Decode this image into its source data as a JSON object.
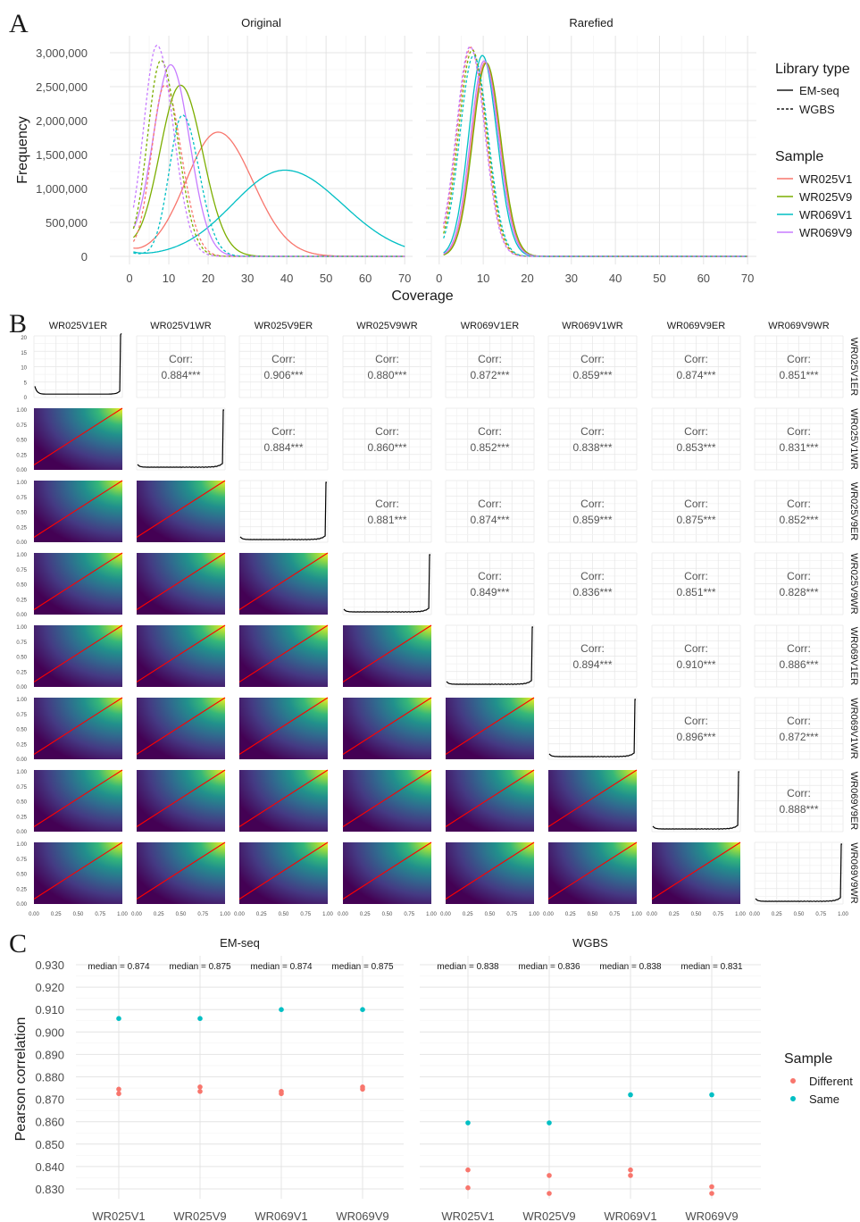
{
  "colors": {
    "WR025V1": "#F8766D",
    "WR025V9": "#7CAE00",
    "WR069V1": "#00BFC4",
    "WR069V9": "#C77CFF",
    "Different": "#F8766D",
    "Same": "#00BFC4",
    "fit_line": "#FF0000",
    "density_line": "#000000"
  },
  "panel_a": {
    "letter": "A",
    "facets": [
      "Original",
      "Rarefied"
    ],
    "xlabel": "Coverage",
    "ylabel": "Frequency",
    "x_ticks": [
      "0",
      "10",
      "20",
      "30",
      "40",
      "50",
      "60",
      "70"
    ],
    "y_ticks": [
      "0",
      "500,000",
      "1,000,000",
      "1,500,000",
      "2,000,000",
      "2,500,000",
      "3,000,000"
    ],
    "legend_library_title": "Library type",
    "legend_library": [
      {
        "label": "EM-seq",
        "dash": "solid"
      },
      {
        "label": "WGBS",
        "dash": "dashed"
      }
    ],
    "legend_sample_title": "Sample",
    "legend_sample": [
      "WR025V1",
      "WR025V9",
      "WR069V1",
      "WR069V9"
    ]
  },
  "panel_b": {
    "letter": "B",
    "samples": [
      "WR025V1ER",
      "WR025V1WR",
      "WR025V9ER",
      "WR025V9WR",
      "WR069V1ER",
      "WR069V1WR",
      "WR069V9ER",
      "WR069V9WR"
    ],
    "corr_label": "Corr:",
    "corr": [
      [
        null,
        "0.884***",
        "0.906***",
        "0.880***",
        "0.872***",
        "0.859***",
        "0.874***",
        "0.851***"
      ],
      [
        null,
        null,
        "0.884***",
        "0.860***",
        "0.852***",
        "0.838***",
        "0.853***",
        "0.831***"
      ],
      [
        null,
        null,
        null,
        "0.881***",
        "0.874***",
        "0.859***",
        "0.875***",
        "0.852***"
      ],
      [
        null,
        null,
        null,
        null,
        "0.849***",
        "0.836***",
        "0.851***",
        "0.828***"
      ],
      [
        null,
        null,
        null,
        null,
        null,
        "0.894***",
        "0.910***",
        "0.886***"
      ],
      [
        null,
        null,
        null,
        null,
        null,
        null,
        "0.896***",
        "0.872***"
      ],
      [
        null,
        null,
        null,
        null,
        null,
        null,
        null,
        "0.888***"
      ]
    ],
    "first_row_y_ticks": [
      "0",
      "5",
      "10",
      "15",
      "20"
    ],
    "y_ticks": [
      "0.00",
      "0.25",
      "0.50",
      "0.75",
      "1.00"
    ],
    "x_ticks": [
      "0.00",
      "0.25",
      "0.50",
      "0.75",
      "1.00"
    ]
  },
  "panel_c": {
    "letter": "C",
    "ylabel": "Pearson correlation",
    "y_ticks": [
      "0.830",
      "0.840",
      "0.850",
      "0.860",
      "0.870",
      "0.880",
      "0.890",
      "0.900",
      "0.910",
      "0.920",
      "0.930"
    ],
    "facets": [
      "EM-seq",
      "WGBS"
    ],
    "categories": [
      "WR025V1",
      "WR025V9",
      "WR069V1",
      "WR069V9"
    ],
    "medians": [
      [
        "median = 0.874",
        "median = 0.875",
        "median = 0.874",
        "median = 0.875"
      ],
      [
        "median = 0.838",
        "median = 0.836",
        "median = 0.838",
        "median = 0.831"
      ]
    ],
    "legend_title": "Sample",
    "legend_items": [
      "Different",
      "Same"
    ]
  },
  "chart_data": [
    {
      "type": "line",
      "panel": "A",
      "facets": [
        "Original",
        "Rarefied"
      ],
      "xlabel": "Coverage",
      "ylabel": "Frequency",
      "xlim": [
        0,
        70
      ],
      "ylim": [
        0,
        3000000
      ],
      "series": [
        {
          "name": "WR025V1",
          "library": "EM-seq",
          "facet": "Original",
          "peak_x": 22.5,
          "peak_y": 1830000
        },
        {
          "name": "WR025V9",
          "library": "EM-seq",
          "facet": "Original",
          "peak_x": 13,
          "peak_y": 2520000
        },
        {
          "name": "WR069V1",
          "library": "EM-seq",
          "facet": "Original",
          "peak_x": 39.5,
          "peak_y": 1270000
        },
        {
          "name": "WR069V9",
          "library": "EM-seq",
          "facet": "Original",
          "peak_x": 10.5,
          "peak_y": 2820000
        },
        {
          "name": "WR025V1",
          "library": "WGBS",
          "facet": "Original",
          "peak_x": 9,
          "peak_y": 2520000
        },
        {
          "name": "WR025V9",
          "library": "WGBS",
          "facet": "Original",
          "peak_x": 8,
          "peak_y": 2880000
        },
        {
          "name": "WR069V1",
          "library": "WGBS",
          "facet": "Original",
          "peak_x": 13.5,
          "peak_y": 2080000
        },
        {
          "name": "WR069V9",
          "library": "WGBS",
          "facet": "Original",
          "peak_x": 7,
          "peak_y": 3100000
        },
        {
          "name": "WR025V1",
          "library": "EM-seq",
          "facet": "Rarefied",
          "peak_x": 10.5,
          "peak_y": 2860000
        },
        {
          "name": "WR025V9",
          "library": "EM-seq",
          "facet": "Rarefied",
          "peak_x": 10.7,
          "peak_y": 2850000
        },
        {
          "name": "WR069V1",
          "library": "EM-seq",
          "facet": "Rarefied",
          "peak_x": 9.8,
          "peak_y": 2960000
        },
        {
          "name": "WR069V9",
          "library": "EM-seq",
          "facet": "Rarefied",
          "peak_x": 10.2,
          "peak_y": 2880000
        },
        {
          "name": "WR025V1",
          "library": "WGBS",
          "facet": "Rarefied",
          "peak_x": 7.2,
          "peak_y": 3080000
        },
        {
          "name": "WR025V9",
          "library": "WGBS",
          "facet": "Rarefied",
          "peak_x": 7.5,
          "peak_y": 3040000
        },
        {
          "name": "WR069V1",
          "library": "WGBS",
          "facet": "Rarefied",
          "peak_x": 7.8,
          "peak_y": 2960000
        },
        {
          "name": "WR069V9",
          "library": "WGBS",
          "facet": "Rarefied",
          "peak_x": 7,
          "peak_y": 3090000
        }
      ]
    },
    {
      "type": "heatmap",
      "panel": "B",
      "categories": [
        "WR025V1ER",
        "WR025V1WR",
        "WR025V9ER",
        "WR025V9WR",
        "WR069V1ER",
        "WR069V1WR",
        "WR069V9ER",
        "WR069V9WR"
      ],
      "note": "pairwise correlation matrix; upper triangle shows Pearson correlation",
      "values": [
        [
          1,
          0.884,
          0.906,
          0.88,
          0.872,
          0.859,
          0.874,
          0.851
        ],
        [
          0.884,
          1,
          0.884,
          0.86,
          0.852,
          0.838,
          0.853,
          0.831
        ],
        [
          0.906,
          0.884,
          1,
          0.881,
          0.874,
          0.859,
          0.875,
          0.852
        ],
        [
          0.88,
          0.86,
          0.881,
          1,
          0.849,
          0.836,
          0.851,
          0.828
        ],
        [
          0.872,
          0.852,
          0.874,
          0.849,
          1,
          0.894,
          0.91,
          0.886
        ],
        [
          0.859,
          0.838,
          0.859,
          0.836,
          0.894,
          1,
          0.896,
          0.872
        ],
        [
          0.874,
          0.853,
          0.875,
          0.851,
          0.91,
          0.896,
          1,
          0.888
        ],
        [
          0.851,
          0.831,
          0.852,
          0.828,
          0.886,
          0.872,
          0.888,
          1
        ]
      ]
    },
    {
      "type": "scatter",
      "panel": "C",
      "ylabel": "Pearson correlation",
      "ylim": [
        0.827,
        0.933
      ],
      "facets": [
        "EM-seq",
        "WGBS"
      ],
      "categories": [
        "WR025V1",
        "WR025V9",
        "WR069V1",
        "WR069V9"
      ],
      "series": [
        {
          "name": "Different",
          "facet": "EM-seq",
          "points": [
            [
              "WR025V1",
              0.8745
            ],
            [
              "WR025V1",
              0.8725
            ],
            [
              "WR025V9",
              0.8755
            ],
            [
              "WR025V9",
              0.8735
            ],
            [
              "WR069V1",
              0.8735
            ],
            [
              "WR069V1",
              0.8725
            ],
            [
              "WR069V9",
              0.8755
            ],
            [
              "WR069V9",
              0.8745
            ]
          ]
        },
        {
          "name": "Same",
          "facet": "EM-seq",
          "points": [
            [
              "WR025V1",
              0.906
            ],
            [
              "WR025V9",
              0.906
            ],
            [
              "WR069V1",
              0.91
            ],
            [
              "WR069V9",
              0.91
            ]
          ]
        },
        {
          "name": "Different",
          "facet": "WGBS",
          "points": [
            [
              "WR025V1",
              0.8385
            ],
            [
              "WR025V1",
              0.8305
            ],
            [
              "WR025V9",
              0.836
            ],
            [
              "WR025V9",
              0.828
            ],
            [
              "WR069V1",
              0.8385
            ],
            [
              "WR069V1",
              0.836
            ],
            [
              "WR069V9",
              0.831
            ],
            [
              "WR069V9",
              0.828
            ]
          ]
        },
        {
          "name": "Same",
          "facet": "WGBS",
          "points": [
            [
              "WR025V1",
              0.8595
            ],
            [
              "WR025V9",
              0.8595
            ],
            [
              "WR069V1",
              0.872
            ],
            [
              "WR069V9",
              0.872
            ]
          ]
        }
      ]
    }
  ]
}
